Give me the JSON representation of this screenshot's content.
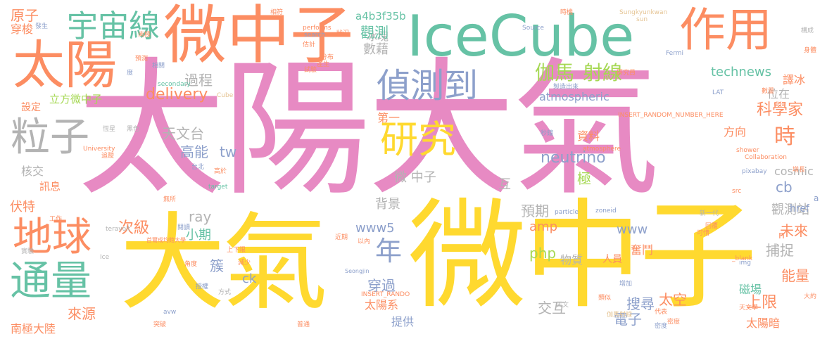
{
  "palette": {
    "pink": "#e78ac3",
    "yellow": "#ffd92f",
    "orange": "#fc8d62",
    "green": "#66c2a5",
    "blue": "#8da0cb",
    "lime": "#a6d854",
    "tan": "#e5c494",
    "gray": "#b3b3b3"
  },
  "words": [
    "太陽大氣",
    "微中子",
    "IceCube",
    "太陽",
    "大氣",
    "微中子",
    "作用",
    "宇宙線",
    "地球",
    "通量",
    "粒子",
    "偵測到",
    "研究",
    "年",
    "伽馬",
    "射線",
    "原子",
    "穿梭",
    "立方微中子",
    "過程",
    "delivery",
    "天文台",
    "高能",
    "tw",
    "核交",
    "訊息",
    "伏特",
    "次級",
    "ray",
    "小期",
    "微 中子",
    "互",
    "極",
    "neutrino",
    "資料",
    "科學家",
    "時",
    "方向",
    "cb",
    "cosmic",
    "觀測站",
    "未來",
    "預期",
    "amp",
    "php",
    "www",
    "www5",
    "背景",
    "捕捉",
    "能量",
    "奮鬥",
    "人員",
    "物質",
    "簇",
    "ck",
    "穿過",
    "太陽系",
    "交互",
    "搜尋",
    "太空",
    "上限",
    "電子",
    "磁場",
    "太陽暗",
    "來源",
    "南極大陸",
    "提供",
    "technews",
    "譯冰",
    "位在",
    "href",
    "a4b3f35b",
    "冰塊",
    "觀測",
    "數藉",
    "第一",
    "atmospheric",
    "設定",
    "n",
    "a",
    "Sungkyunkwan",
    "Seongjin",
    "INSERT_RANDOM_NUMBER_HERE",
    "INSERT_RANDO",
    "Source",
    "University",
    "atmosphere",
    "shower",
    "Collaboration",
    "pixabay",
    "target",
    "teravolt",
    "performs",
    "search",
    "secondary",
    "Fermi",
    "LAT",
    "particle",
    "zoneid",
    "img",
    "_blank",
    "Cube",
    "sun",
    "Ice",
    "src",
    "avw",
    "首爾成均館大學",
    "天文學",
    "預測",
    "分布",
    "相關",
    "恆星",
    "黑色",
    "台北",
    "秒鐘",
    "估計",
    "製造出來",
    "新一代",
    "實驗",
    "工作",
    "方式",
    "授權",
    "增加",
    "可惜",
    "研究員",
    "數量",
    "構成",
    "伽馬射線",
    "發生",
    "相符",
    "時機",
    "身體",
    "度",
    "產生",
    "大約",
    "天文",
    "密度",
    "類似",
    "代表",
    "普通",
    "角度",
    "突破",
    "減少",
    "上下限",
    "無所",
    "閱讀",
    "近期",
    "以內",
    "高於",
    "增長",
    "狀況",
    "南極",
    "試驗",
    "追蹤",
    "密度",
    "回覆"
  ]
}
